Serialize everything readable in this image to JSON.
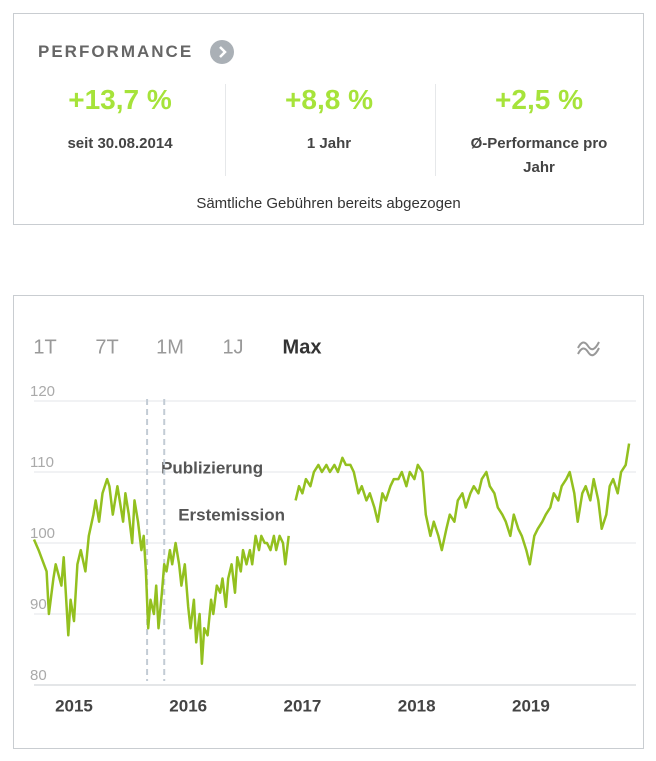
{
  "performance": {
    "title": "PERFORMANCE",
    "stats": [
      {
        "value": "+13,7 %",
        "label": "seit 30.08.2014"
      },
      {
        "value": "+8,8 %",
        "label": "1 Jahr"
      },
      {
        "value": "+2,5 %",
        "label": "Ø-Performance pro Jahr"
      }
    ],
    "note": "Sämtliche Gebühren bereits abgezogen"
  },
  "chart_data": {
    "type": "line",
    "ranges": [
      "1T",
      "7T",
      "1M",
      "1J",
      "Max"
    ],
    "selected_range": 4,
    "color": "#93c01f",
    "x": [
      2014.65,
      2014.69,
      2014.76,
      2014.78,
      2014.82,
      2014.84,
      2014.89,
      2014.91,
      2014.95,
      2014.97,
      2015.0,
      2015.03,
      2015.06,
      2015.1,
      2015.13,
      2015.17,
      2015.19,
      2015.22,
      2015.25,
      2015.29,
      2015.31,
      2015.34,
      2015.38,
      2015.4,
      2015.43,
      2015.45,
      2015.48,
      2015.51,
      2015.53,
      2015.56,
      2015.59,
      2015.61,
      2015.63,
      2015.65,
      2015.67,
      2015.7,
      2015.72,
      2015.74,
      2015.77,
      2015.79,
      2015.81,
      2015.84,
      2015.86,
      2015.89,
      2015.92,
      2015.94,
      2015.97,
      2016.0,
      2016.02,
      2016.05,
      2016.07,
      2016.1,
      2016.12,
      2016.14,
      2016.17,
      2016.2,
      2016.22,
      2016.25,
      2016.28,
      2016.3,
      2016.33,
      2016.35,
      2016.38,
      2016.41,
      2016.43,
      2016.46,
      2016.48,
      2016.51,
      2016.54,
      2016.56,
      2016.59,
      2016.62,
      2016.64,
      2016.67,
      2016.69,
      2016.72,
      2016.75,
      2016.77,
      2016.8,
      2016.83,
      2016.85,
      2016.88,
      2016.91,
      2016.94,
      2016.97,
      2017.0,
      2017.03,
      2017.07,
      2017.1,
      2017.14,
      2017.17,
      2017.21,
      2017.24,
      2017.28,
      2017.31,
      2017.35,
      2017.38,
      2017.42,
      2017.45,
      2017.49,
      2017.52,
      2017.56,
      2017.59,
      2017.63,
      2017.66,
      2017.7,
      2017.73,
      2017.77,
      2017.8,
      2017.84,
      2017.87,
      2017.91,
      2017.94,
      2017.98,
      2018.01,
      2018.05,
      2018.08,
      2018.12,
      2018.15,
      2018.19,
      2018.22,
      2018.26,
      2018.29,
      2018.33,
      2018.36,
      2018.4,
      2018.43,
      2018.47,
      2018.5,
      2018.54,
      2018.57,
      2018.61,
      2018.64,
      2018.68,
      2018.71,
      2018.75,
      2018.78,
      2018.82,
      2018.85,
      2018.89,
      2018.92,
      2018.96,
      2018.99,
      2019.03,
      2019.06,
      2019.1,
      2019.13,
      2019.17,
      2019.2,
      2019.24,
      2019.27,
      2019.31,
      2019.34,
      2019.38,
      2019.41,
      2019.45,
      2019.48,
      2019.52,
      2019.55,
      2019.59,
      2019.62,
      2019.66,
      2019.69,
      2019.72,
      2019.76,
      2019.79,
      2019.83,
      2019.86
    ],
    "values": [
      100.5,
      99,
      96,
      90,
      95,
      97,
      94,
      98,
      87,
      92,
      89,
      97,
      99,
      96,
      101,
      104,
      106,
      103,
      107,
      109,
      108,
      104,
      108,
      106,
      103,
      107,
      104,
      100,
      106,
      103,
      99,
      101,
      96,
      88,
      92,
      90,
      94,
      88,
      93,
      97,
      96,
      99,
      97,
      100,
      97,
      94,
      97,
      91,
      88,
      92,
      86,
      90,
      83,
      88,
      87,
      92,
      90,
      94,
      93,
      95,
      91,
      95,
      97,
      93,
      98,
      96,
      99,
      97,
      99,
      97,
      101,
      99,
      101,
      100,
      100,
      99,
      101,
      99,
      101,
      100,
      97,
      101,
      null,
      106,
      108,
      107,
      109,
      108,
      110,
      111,
      110,
      111,
      110,
      111,
      110,
      112,
      111,
      111,
      110,
      107,
      108,
      106,
      107,
      105,
      103,
      107,
      106,
      108,
      109,
      109,
      110,
      108,
      110,
      109,
      111,
      110,
      104,
      101,
      103,
      101,
      99,
      102,
      104,
      103,
      106,
      107,
      105,
      107,
      108,
      107,
      109,
      110,
      108,
      107,
      105,
      104,
      103,
      101,
      104,
      102,
      101,
      99,
      97,
      101,
      102,
      103,
      104,
      105,
      107,
      106,
      108,
      109,
      110,
      107,
      103,
      107,
      108,
      106,
      109,
      106,
      102,
      104,
      108,
      109,
      107,
      110,
      111,
      114
    ],
    "xlim": [
      2014.65,
      2019.92
    ],
    "xticks": [
      2015,
      2016,
      2017,
      2018,
      2019
    ],
    "ylim": [
      80,
      120
    ],
    "yticks": [
      80,
      90,
      100,
      110,
      120
    ],
    "grid": true,
    "annotations": [
      {
        "text": "Publizierung",
        "x": 2015.64
      },
      {
        "text": "Erstemission",
        "x": 2015.79
      }
    ]
  }
}
